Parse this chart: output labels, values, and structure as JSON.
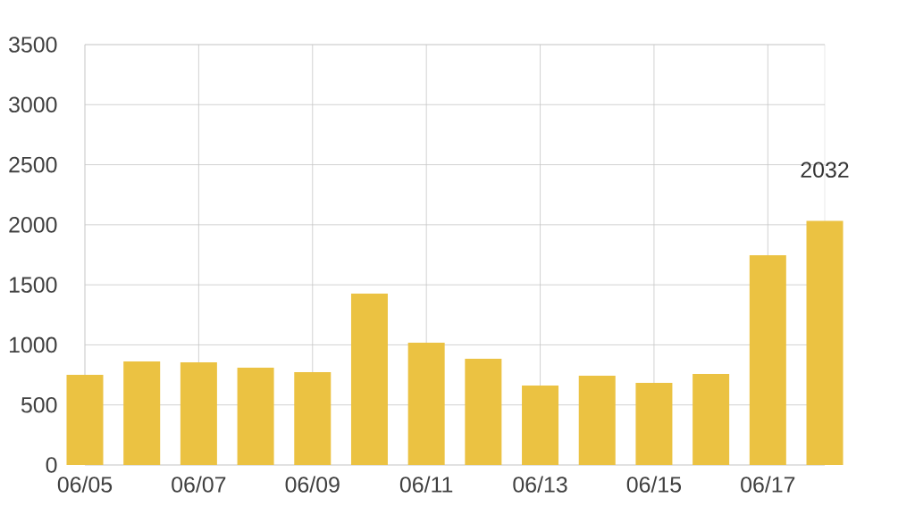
{
  "chart_data": {
    "type": "bar",
    "categories": [
      "06/05",
      null,
      "06/07",
      null,
      "06/09",
      null,
      "06/11",
      null,
      "06/13",
      null,
      "06/15",
      null,
      "06/17",
      null
    ],
    "values": [
      750,
      862,
      854,
      810,
      773,
      1426,
      1018,
      884,
      661,
      743,
      683,
      758,
      1746,
      2032
    ],
    "value_labels": [
      null,
      null,
      null,
      null,
      null,
      null,
      null,
      null,
      null,
      null,
      null,
      null,
      null,
      "2032"
    ],
    "color": "#ebc242",
    "ylim": [
      0,
      3500
    ],
    "yticks": [
      0,
      500,
      1000,
      1500,
      2000,
      2500,
      3000,
      3500
    ],
    "grid": true
  }
}
